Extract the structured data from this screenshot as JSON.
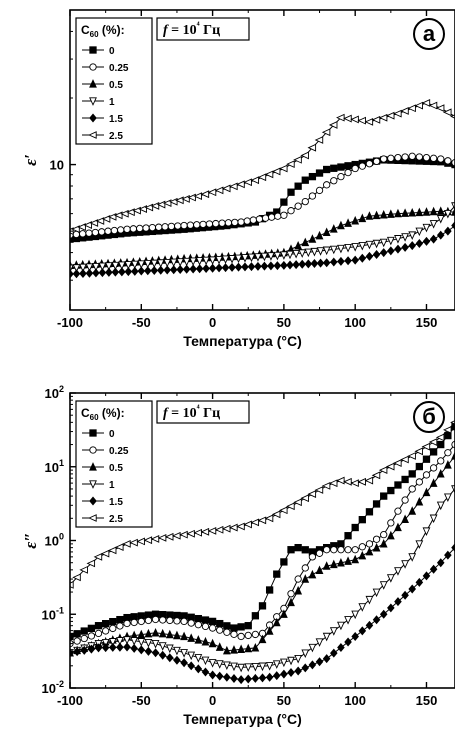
{
  "chart_data": [
    {
      "type": "line",
      "panel_label": "а",
      "ylabel": "ε′",
      "xlabel": "Температура (°C)",
      "xlim": [
        -100,
        170
      ],
      "ylim": [
        2.2,
        50
      ],
      "yscale": "log",
      "x_ticks": [
        "-100",
        "-50",
        "0",
        "50",
        "100",
        "150"
      ],
      "y_tick_labels": [
        {
          "value": 10,
          "label": "10"
        }
      ],
      "legend_title": "C60 (%):",
      "frequency_label": "f = 10⁴ Гц",
      "series": [
        {
          "name": "0",
          "marker": "square-filled",
          "points": [
            [
              -100,
              4.6
            ],
            [
              -60,
              4.9
            ],
            [
              -20,
              5.1
            ],
            [
              10,
              5.3
            ],
            [
              30,
              5.5
            ],
            [
              45,
              6.1
            ],
            [
              55,
              7.5
            ],
            [
              65,
              8.5
            ],
            [
              80,
              9.5
            ],
            [
              100,
              10.0
            ],
            [
              120,
              10.5
            ],
            [
              140,
              10.4
            ],
            [
              160,
              10.3
            ],
            [
              170,
              10.0
            ]
          ]
        },
        {
          "name": "0.25",
          "marker": "circle-open",
          "points": [
            [
              -100,
              4.8
            ],
            [
              -60,
              5.1
            ],
            [
              -20,
              5.3
            ],
            [
              20,
              5.5
            ],
            [
              50,
              5.9
            ],
            [
              65,
              6.8
            ],
            [
              80,
              8.1
            ],
            [
              100,
              9.6
            ],
            [
              120,
              10.6
            ],
            [
              140,
              10.9
            ],
            [
              160,
              10.6
            ],
            [
              170,
              10.2
            ]
          ]
        },
        {
          "name": "0.5",
          "marker": "triangle-up-filled",
          "points": [
            [
              -100,
              3.5
            ],
            [
              -60,
              3.6
            ],
            [
              -20,
              3.75
            ],
            [
              20,
              3.85
            ],
            [
              50,
              4.0
            ],
            [
              70,
              4.6
            ],
            [
              90,
              5.3
            ],
            [
              110,
              5.85
            ],
            [
              130,
              6.0
            ],
            [
              150,
              6.1
            ],
            [
              160,
              6.15
            ],
            [
              170,
              6.1
            ]
          ]
        },
        {
          "name": "1",
          "marker": "triangle-down-open",
          "points": [
            [
              -100,
              3.4
            ],
            [
              -50,
              3.55
            ],
            [
              0,
              3.7
            ],
            [
              50,
              3.9
            ],
            [
              80,
              4.1
            ],
            [
              100,
              4.25
            ],
            [
              120,
              4.45
            ],
            [
              140,
              4.8
            ],
            [
              155,
              5.4
            ],
            [
              165,
              6.0
            ],
            [
              170,
              6.5
            ]
          ]
        },
        {
          "name": "1.5",
          "marker": "diamond-filled",
          "points": [
            [
              -100,
              3.2
            ],
            [
              -50,
              3.3
            ],
            [
              0,
              3.4
            ],
            [
              50,
              3.5
            ],
            [
              80,
              3.6
            ],
            [
              100,
              3.7
            ],
            [
              120,
              4.0
            ],
            [
              140,
              4.3
            ],
            [
              155,
              4.6
            ],
            [
              165,
              5.0
            ],
            [
              170,
              5.3
            ]
          ]
        },
        {
          "name": "2.5",
          "marker": "triangle-left-open",
          "points": [
            [
              -100,
              5.0
            ],
            [
              -70,
              5.8
            ],
            [
              -40,
              6.5
            ],
            [
              -10,
              7.2
            ],
            [
              10,
              7.8
            ],
            [
              30,
              8.5
            ],
            [
              50,
              9.6
            ],
            [
              65,
              11.0
            ],
            [
              80,
              14.0
            ],
            [
              90,
              16.3
            ],
            [
              100,
              16.0
            ],
            [
              110,
              15.6
            ],
            [
              130,
              17.0
            ],
            [
              150,
              19.0
            ],
            [
              160,
              18.0
            ],
            [
              170,
              16.5
            ]
          ]
        }
      ]
    },
    {
      "type": "line",
      "panel_label": "б",
      "ylabel": "ε″",
      "xlabel": "Температура (°C)",
      "xlim": [
        -100,
        170
      ],
      "ylim": [
        0.01,
        100
      ],
      "yscale": "log",
      "x_ticks": [
        "-100",
        "-50",
        "0",
        "50",
        "100",
        "150"
      ],
      "y_tick_labels": [
        {
          "value": 0.01,
          "base": "10",
          "exp": "-2"
        },
        {
          "value": 0.1,
          "base": "10",
          "exp": "-1"
        },
        {
          "value": 1,
          "base": "10",
          "exp": "0"
        },
        {
          "value": 10,
          "base": "10",
          "exp": "1"
        },
        {
          "value": 100,
          "base": "10",
          "exp": "2"
        }
      ],
      "legend_title": "C60 (%):",
      "frequency_label": "f = 10⁴ Гц",
      "series": [
        {
          "name": "0",
          "marker": "square-filled",
          "points": [
            [
              -100,
              0.05
            ],
            [
              -80,
              0.07
            ],
            [
              -60,
              0.09
            ],
            [
              -40,
              0.1
            ],
            [
              -20,
              0.095
            ],
            [
              0,
              0.08
            ],
            [
              15,
              0.065
            ],
            [
              25,
              0.07
            ],
            [
              35,
              0.13
            ],
            [
              45,
              0.35
            ],
            [
              55,
              0.75
            ],
            [
              60,
              0.8
            ],
            [
              70,
              0.7
            ],
            [
              80,
              0.8
            ],
            [
              90,
              0.9
            ],
            [
              100,
              1.5
            ],
            [
              120,
              4.0
            ],
            [
              140,
              8.0
            ],
            [
              160,
              20.0
            ],
            [
              170,
              35.0
            ]
          ]
        },
        {
          "name": "0.25",
          "marker": "circle-open",
          "points": [
            [
              -100,
              0.04
            ],
            [
              -80,
              0.055
            ],
            [
              -60,
              0.075
            ],
            [
              -40,
              0.085
            ],
            [
              -20,
              0.08
            ],
            [
              0,
              0.065
            ],
            [
              20,
              0.05
            ],
            [
              35,
              0.055
            ],
            [
              50,
              0.12
            ],
            [
              60,
              0.3
            ],
            [
              70,
              0.6
            ],
            [
              80,
              0.75
            ],
            [
              100,
              0.75
            ],
            [
              110,
              0.9
            ],
            [
              120,
              1.2
            ],
            [
              130,
              2.5
            ],
            [
              140,
              5.0
            ],
            [
              160,
              12.0
            ],
            [
              170,
              20.0
            ]
          ]
        },
        {
          "name": "0.5",
          "marker": "triangle-up-filled",
          "points": [
            [
              -100,
              0.03
            ],
            [
              -80,
              0.04
            ],
            [
              -60,
              0.05
            ],
            [
              -40,
              0.056
            ],
            [
              -20,
              0.05
            ],
            [
              0,
              0.04
            ],
            [
              10,
              0.032
            ],
            [
              30,
              0.035
            ],
            [
              50,
              0.1
            ],
            [
              65,
              0.3
            ],
            [
              80,
              0.45
            ],
            [
              100,
              0.55
            ],
            [
              120,
              0.9
            ],
            [
              140,
              2.5
            ],
            [
              160,
              8.0
            ],
            [
              170,
              14.0
            ]
          ]
        },
        {
          "name": "1",
          "marker": "triangle-down-open",
          "points": [
            [
              -100,
              0.03
            ],
            [
              -80,
              0.04
            ],
            [
              -60,
              0.045
            ],
            [
              -40,
              0.04
            ],
            [
              -20,
              0.03
            ],
            [
              0,
              0.022
            ],
            [
              20,
              0.019
            ],
            [
              40,
              0.02
            ],
            [
              60,
              0.025
            ],
            [
              80,
              0.05
            ],
            [
              100,
              0.1
            ],
            [
              120,
              0.25
            ],
            [
              140,
              0.6
            ],
            [
              160,
              3.0
            ],
            [
              170,
              5.0
            ]
          ]
        },
        {
          "name": "1.5",
          "marker": "diamond-filled",
          "points": [
            [
              -100,
              0.03
            ],
            [
              -80,
              0.035
            ],
            [
              -60,
              0.036
            ],
            [
              -40,
              0.03
            ],
            [
              -20,
              0.022
            ],
            [
              0,
              0.015
            ],
            [
              20,
              0.013
            ],
            [
              40,
              0.014
            ],
            [
              60,
              0.017
            ],
            [
              80,
              0.025
            ],
            [
              100,
              0.05
            ],
            [
              120,
              0.1
            ],
            [
              140,
              0.22
            ],
            [
              160,
              0.5
            ],
            [
              170,
              0.8
            ]
          ]
        },
        {
          "name": "2.5",
          "marker": "triangle-left-open",
          "points": [
            [
              -100,
              0.25
            ],
            [
              -90,
              0.4
            ],
            [
              -80,
              0.6
            ],
            [
              -60,
              0.9
            ],
            [
              -40,
              1.05
            ],
            [
              -20,
              1.2
            ],
            [
              0,
              1.35
            ],
            [
              20,
              1.55
            ],
            [
              40,
              2.0
            ],
            [
              60,
              3.3
            ],
            [
              80,
              5.5
            ],
            [
              90,
              6.5
            ],
            [
              100,
              6.0
            ],
            [
              110,
              6.5
            ],
            [
              120,
              9.0
            ],
            [
              140,
              14.0
            ],
            [
              160,
              25.0
            ],
            [
              170,
              40.0
            ]
          ]
        }
      ]
    }
  ]
}
